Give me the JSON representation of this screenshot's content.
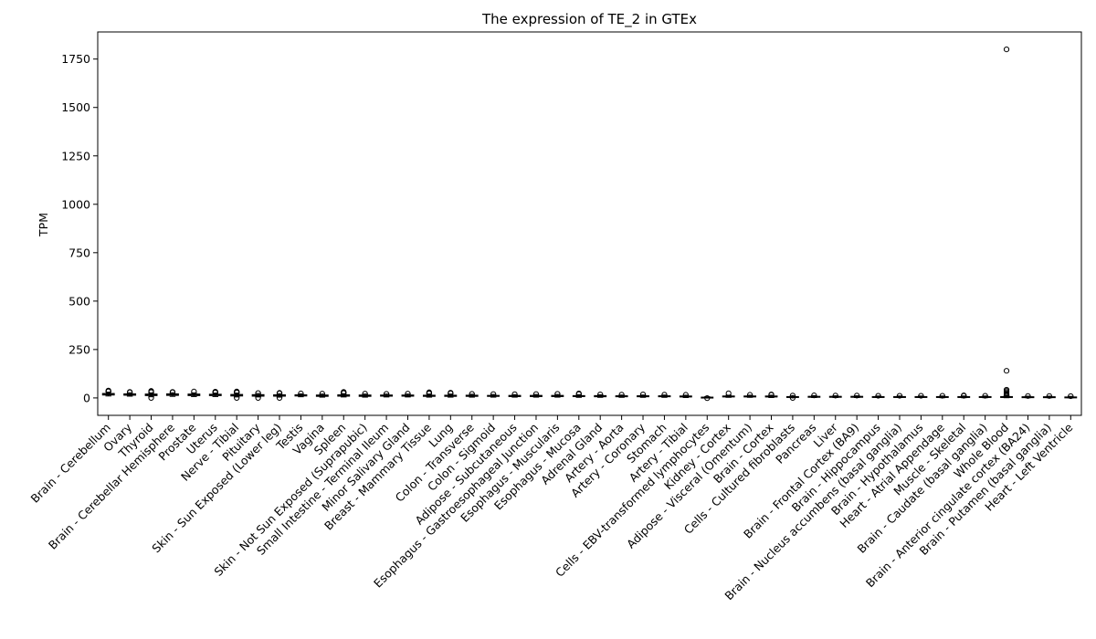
{
  "chart_data": {
    "type": "boxplot",
    "title": "The expression of TE_2 in GTEx",
    "xlabel": "",
    "ylabel": "TPM",
    "ylim": [
      -90,
      1890
    ],
    "yticks": [
      0,
      250,
      500,
      750,
      1000,
      1250,
      1500,
      1750
    ],
    "grid": false,
    "legend": "none",
    "colors": {
      "box": "#000000",
      "median": "#000000",
      "background": "#ffffff"
    },
    "categories": [
      "Brain - Cerebellum",
      "Ovary",
      "Thyroid",
      "Brain - Cerebellar Hemisphere",
      "Prostate",
      "Uterus",
      "Nerve - Tibial",
      "Pituitary",
      "Skin - Sun Exposed (Lower leg)",
      "Testis",
      "Vagina",
      "Spleen",
      "Skin - Not Sun Exposed (Suprapubic)",
      "Small Intestine - Terminal Ileum",
      "Minor Salivary Gland",
      "Breast - Mammary Tissue",
      "Lung",
      "Colon - Transverse",
      "Colon - Sigmoid",
      "Adipose - Subcutaneous",
      "Esophagus - Gastroesophageal Junction",
      "Esophagus - Muscularis",
      "Esophagus - Mucosa",
      "Adrenal Gland",
      "Artery - Aorta",
      "Artery - Coronary",
      "Stomach",
      "Artery - Tibial",
      "Cells - EBV-transformed lymphocytes",
      "Kidney - Cortex",
      "Adipose - Visceral (Omentum)",
      "Brain - Cortex",
      "Cells - Cultured fibroblasts",
      "Pancreas",
      "Liver",
      "Brain - Frontal Cortex (BA9)",
      "Brain - Hippocampus",
      "Brain - Nucleus accumbens (basal ganglia)",
      "Brain - Hypothalamus",
      "Heart - Atrial Appendage",
      "Muscle - Skeletal",
      "Brain - Caudate (basal ganglia)",
      "Whole Blood",
      "Brain - Anterior cingulate cortex (BA24)",
      "Brain - Putamen (basal ganglia)",
      "Heart - Left Ventricle"
    ],
    "boxes": [
      {
        "wlo": 10,
        "q1": 15,
        "med": 19,
        "q3": 23,
        "whi": 30,
        "fliers": [
          34,
          36,
          38
        ]
      },
      {
        "wlo": 9,
        "q1": 14,
        "med": 17,
        "q3": 21,
        "whi": 27,
        "fliers": [
          29,
          31
        ]
      },
      {
        "wlo": 6,
        "q1": 12,
        "med": 16,
        "q3": 20,
        "whi": 26,
        "fliers": [
          0,
          30,
          34,
          36
        ]
      },
      {
        "wlo": 8,
        "q1": 13,
        "med": 17,
        "q3": 21,
        "whi": 27,
        "fliers": [
          29,
          31
        ]
      },
      {
        "wlo": 7,
        "q1": 12,
        "med": 16,
        "q3": 20,
        "whi": 26,
        "fliers": [
          33
        ]
      },
      {
        "wlo": 7,
        "q1": 12,
        "med": 15,
        "q3": 19,
        "whi": 25,
        "fliers": [
          28,
          30,
          32
        ]
      },
      {
        "wlo": 5,
        "q1": 10,
        "med": 14,
        "q3": 18,
        "whi": 25,
        "fliers": [
          0,
          28,
          30,
          33
        ]
      },
      {
        "wlo": 5,
        "q1": 9,
        "med": 13,
        "q3": 17,
        "whi": 23,
        "fliers": [
          0,
          25
        ]
      },
      {
        "wlo": 4,
        "q1": 9,
        "med": 12,
        "q3": 16,
        "whi": 22,
        "fliers": [
          0,
          24,
          26
        ]
      },
      {
        "wlo": 6,
        "q1": 10,
        "med": 13,
        "q3": 16,
        "whi": 21,
        "fliers": [
          23
        ]
      },
      {
        "wlo": 4,
        "q1": 8,
        "med": 11,
        "q3": 15,
        "whi": 20,
        "fliers": [
          22
        ]
      },
      {
        "wlo": 5,
        "q1": 9,
        "med": 12,
        "q3": 16,
        "whi": 22,
        "fliers": [
          25,
          28,
          31
        ]
      },
      {
        "wlo": 4,
        "q1": 8,
        "med": 11,
        "q3": 15,
        "whi": 20,
        "fliers": [
          22
        ]
      },
      {
        "wlo": 5,
        "q1": 9,
        "med": 12,
        "q3": 15,
        "whi": 20,
        "fliers": [
          21
        ]
      },
      {
        "wlo": 5,
        "q1": 9,
        "med": 12,
        "q3": 15,
        "whi": 20,
        "fliers": [
          22
        ]
      },
      {
        "wlo": 4,
        "q1": 8,
        "med": 11,
        "q3": 14,
        "whi": 20,
        "fliers": [
          23,
          26,
          29
        ]
      },
      {
        "wlo": 4,
        "q1": 8,
        "med": 11,
        "q3": 14,
        "whi": 20,
        "fliers": [
          24,
          27
        ]
      },
      {
        "wlo": 4,
        "q1": 8,
        "med": 11,
        "q3": 14,
        "whi": 19,
        "fliers": [
          21
        ]
      },
      {
        "wlo": 4,
        "q1": 8,
        "med": 10,
        "q3": 13,
        "whi": 18,
        "fliers": [
          20
        ]
      },
      {
        "wlo": 4,
        "q1": 7,
        "med": 10,
        "q3": 13,
        "whi": 17,
        "fliers": [
          19
        ]
      },
      {
        "wlo": 4,
        "q1": 7,
        "med": 10,
        "q3": 13,
        "whi": 18,
        "fliers": [
          20
        ]
      },
      {
        "wlo": 4,
        "q1": 7,
        "med": 10,
        "q3": 13,
        "whi": 18,
        "fliers": [
          21
        ]
      },
      {
        "wlo": 3,
        "q1": 7,
        "med": 9,
        "q3": 12,
        "whi": 17,
        "fliers": [
          20,
          23
        ]
      },
      {
        "wlo": 3,
        "q1": 6,
        "med": 9,
        "q3": 12,
        "whi": 16,
        "fliers": [
          18
        ]
      },
      {
        "wlo": 3,
        "q1": 6,
        "med": 9,
        "q3": 11,
        "whi": 15,
        "fliers": [
          17
        ]
      },
      {
        "wlo": 3,
        "q1": 6,
        "med": 9,
        "q3": 11,
        "whi": 15,
        "fliers": [
          18
        ]
      },
      {
        "wlo": 3,
        "q1": 6,
        "med": 8,
        "q3": 11,
        "whi": 15,
        "fliers": [
          17
        ]
      },
      {
        "wlo": 2,
        "q1": 5,
        "med": 7,
        "q3": 10,
        "whi": 14,
        "fliers": [
          16
        ]
      },
      {
        "wlo": 0,
        "q1": 1,
        "med": 2,
        "q3": 4,
        "whi": 6,
        "fliers": [
          -1
        ]
      },
      {
        "wlo": 3,
        "q1": 5,
        "med": 8,
        "q3": 10,
        "whi": 14,
        "fliers": [
          24
        ]
      },
      {
        "wlo": 3,
        "q1": 5,
        "med": 8,
        "q3": 10,
        "whi": 14,
        "fliers": [
          16
        ]
      },
      {
        "wlo": 2,
        "q1": 5,
        "med": 7,
        "q3": 10,
        "whi": 14,
        "fliers": [
          16,
          18
        ]
      },
      {
        "wlo": 1,
        "q1": 3,
        "med": 5,
        "q3": 7,
        "whi": 10,
        "fliers": [
          0,
          12
        ]
      },
      {
        "wlo": 2,
        "q1": 4,
        "med": 6,
        "q3": 8,
        "whi": 12,
        "fliers": [
          13
        ]
      },
      {
        "wlo": 2,
        "q1": 4,
        "med": 6,
        "q3": 8,
        "whi": 11,
        "fliers": [
          12
        ]
      },
      {
        "wlo": 2,
        "q1": 4,
        "med": 6,
        "q3": 8,
        "whi": 11,
        "fliers": [
          12
        ]
      },
      {
        "wlo": 2,
        "q1": 3,
        "med": 5,
        "q3": 7,
        "whi": 10,
        "fliers": [
          11
        ]
      },
      {
        "wlo": 2,
        "q1": 3,
        "med": 5,
        "q3": 7,
        "whi": 10,
        "fliers": [
          11
        ]
      },
      {
        "wlo": 2,
        "q1": 3,
        "med": 5,
        "q3": 7,
        "whi": 10,
        "fliers": [
          11
        ]
      },
      {
        "wlo": 1,
        "q1": 3,
        "med": 5,
        "q3": 7,
        "whi": 10,
        "fliers": [
          11
        ]
      },
      {
        "wlo": 1,
        "q1": 3,
        "med": 5,
        "q3": 7,
        "whi": 10,
        "fliers": [
          11,
          13
        ]
      },
      {
        "wlo": 1,
        "q1": 3,
        "med": 5,
        "q3": 7,
        "whi": 10,
        "fliers": [
          11
        ]
      },
      {
        "wlo": 1,
        "q1": 3,
        "med": 5,
        "q3": 7,
        "whi": 11,
        "fliers": [
          14,
          18,
          24,
          30,
          36,
          42,
          140,
          1800
        ]
      },
      {
        "wlo": 1,
        "q1": 3,
        "med": 4,
        "q3": 6,
        "whi": 9,
        "fliers": [
          10
        ]
      },
      {
        "wlo": 1,
        "q1": 2,
        "med": 4,
        "q3": 6,
        "whi": 9,
        "fliers": [
          10
        ]
      },
      {
        "wlo": 0,
        "q1": 2,
        "med": 3,
        "q3": 5,
        "whi": 8,
        "fliers": [
          9
        ]
      }
    ]
  }
}
